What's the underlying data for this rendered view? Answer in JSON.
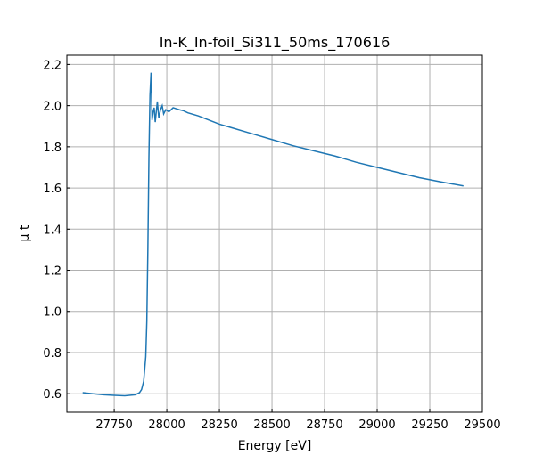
{
  "chart_data": {
    "type": "line",
    "title": "In-K_In-foil_Si311_50ms_170616",
    "x_label": "Energy [eV]",
    "y_label": "μ t",
    "x": [
      27600,
      27650,
      27700,
      27750,
      27800,
      27850,
      27870,
      27880,
      27890,
      27900,
      27905,
      27910,
      27915,
      27920,
      27925,
      27930,
      27935,
      27940,
      27945,
      27955,
      27962,
      27970,
      27978,
      27985,
      27995,
      28010,
      28030,
      28060,
      28080,
      28100,
      28150,
      28200,
      28250,
      28300,
      28400,
      28500,
      28600,
      28700,
      28800,
      28900,
      29000,
      29100,
      29200,
      29300,
      29410
    ],
    "series": [
      {
        "name": "In-K_In-foil_Si311_50ms_170616",
        "color": "#1f77b4",
        "values": [
          0.605,
          0.6,
          0.595,
          0.592,
          0.59,
          0.595,
          0.605,
          0.62,
          0.66,
          0.78,
          0.95,
          1.3,
          1.75,
          2.05,
          2.16,
          1.93,
          1.97,
          1.99,
          1.92,
          2.02,
          1.94,
          1.98,
          2.0,
          1.96,
          1.98,
          1.97,
          1.99,
          1.98,
          1.975,
          1.965,
          1.95,
          1.93,
          1.91,
          1.895,
          1.865,
          1.835,
          1.805,
          1.78,
          1.755,
          1.725,
          1.7,
          1.675,
          1.65,
          1.63,
          1.61
        ]
      }
    ],
    "xlim": [
      27525,
      29500
    ],
    "ylim": [
      0.51,
      2.245
    ],
    "xticks": [
      27750,
      28000,
      28250,
      28500,
      28750,
      29000,
      29250,
      29500
    ],
    "yticks": [
      {
        "value": 0.6,
        "label": "0.6"
      },
      {
        "value": 0.8,
        "label": "0.8"
      },
      {
        "value": 1.0,
        "label": "1.0"
      },
      {
        "value": 1.2,
        "label": "1.2"
      },
      {
        "value": 1.4,
        "label": "1.4"
      },
      {
        "value": 1.6,
        "label": "1.6"
      },
      {
        "value": 1.8,
        "label": "1.8"
      },
      {
        "value": 2.0,
        "label": "2.0"
      },
      {
        "value": 2.2,
        "label": "2.2"
      }
    ],
    "grid": true
  }
}
